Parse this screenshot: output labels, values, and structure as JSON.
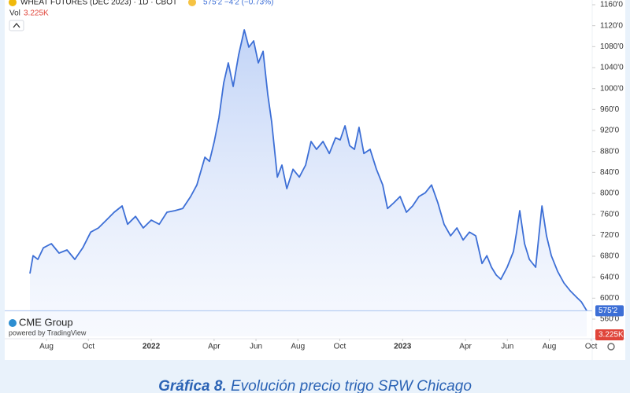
{
  "chart_data": {
    "type": "line",
    "title": "WHEAT FUTURES (DEC 2023) · 1D · CBOT",
    "price_info": "575'2 −4'2 (−0.73%)",
    "volume_label": "Vol",
    "volume_value": "3.225K",
    "last_price_label": "575'2",
    "last_volume_label": "3.225K",
    "brand": "CME Group",
    "powered_by": "powered by TradingView",
    "caption_bold": "Gráfica 8.",
    "caption": " Evolución precio trigo SRW Chicago",
    "x": [
      6.21,
      6.36,
      6.59,
      6.85,
      7.23,
      7.6,
      7.98,
      8.35,
      8.73,
      9.11,
      9.48,
      9.86,
      10.23,
      10.61,
      10.87,
      11.25,
      11.62,
      12,
      12.38,
      12.75,
      13.13,
      13.5,
      13.88,
      14.18,
      14.56,
      14.78,
      15.01,
      15.23,
      15.46,
      15.68,
      15.91,
      16.17,
      16.44,
      16.66,
      16.89,
      17.11,
      17.34,
      17.56,
      17.75,
      18.02,
      18.24,
      18.47,
      18.77,
      19.07,
      19.37,
      19.63,
      19.89,
      20.2,
      20.5,
      20.8,
      21.02,
      21.25,
      21.47,
      21.7,
      21.92,
      22.15,
      22.45,
      22.75,
      23.05,
      23.28,
      23.58,
      23.88,
      24.18,
      24.48,
      24.78,
      25.08,
      25.38,
      25.68,
      25.98,
      26.29,
      26.59,
      26.89,
      27.19,
      27.49,
      27.79,
      28.02,
      28.24,
      28.47,
      28.69,
      28.99,
      29.29,
      29.44,
      29.59,
      29.82,
      30.05,
      30.35,
      30.65,
      30.87,
      31.1,
      31.4,
      31.7,
      32,
      32.3,
      32.53,
      32.79
    ],
    "series": [
      {
        "name": "WHEAT FUTURES (DEC 2023)",
        "color": "#3d6fd6",
        "values": [
          647,
          681,
          674,
          696,
          704,
          686,
          692,
          674,
          696,
          726,
          734,
          749,
          764,
          776,
          741,
          756,
          734,
          749,
          741,
          764,
          767,
          771,
          794,
          816,
          869,
          861,
          899,
          944,
          1011,
          1049,
          1004,
          1064,
          1112,
          1079,
          1091,
          1049,
          1071,
          989,
          936,
          831,
          854,
          809,
          846,
          831,
          854,
          899,
          884,
          899,
          876,
          906,
          902,
          929,
          891,
          884,
          926,
          876,
          884,
          846,
          816,
          771,
          782,
          794,
          764,
          776,
          794,
          801,
          816,
          782,
          741,
          719,
          734,
          711,
          726,
          719,
          666,
          681,
          659,
          644,
          636,
          659,
          689,
          726,
          767,
          704,
          674,
          659,
          776,
          719,
          681,
          651,
          629,
          614,
          602,
          593,
          576
        ]
      }
    ],
    "xlim": [
      4.78,
      33.05
    ],
    "xticks": [
      {
        "value": 7,
        "label": "Aug"
      },
      {
        "value": 9,
        "label": "Oct"
      },
      {
        "value": 12,
        "label": "2022"
      },
      {
        "value": 15,
        "label": "Apr"
      },
      {
        "value": 17,
        "label": "Jun"
      },
      {
        "value": 19,
        "label": "Aug"
      },
      {
        "value": 21,
        "label": "Oct"
      },
      {
        "value": 24,
        "label": "2023"
      },
      {
        "value": 27,
        "label": "Apr"
      },
      {
        "value": 29,
        "label": "Jun"
      },
      {
        "value": 31,
        "label": "Aug"
      },
      {
        "value": 33,
        "label": "Oct"
      }
    ],
    "ylim": [
      527,
      1169
    ],
    "yticks": [
      {
        "value": 560,
        "label": "560'0"
      },
      {
        "value": 600,
        "label": "600'0"
      },
      {
        "value": 640,
        "label": "640'0"
      },
      {
        "value": 680,
        "label": "680'0"
      },
      {
        "value": 720,
        "label": "720'0"
      },
      {
        "value": 760,
        "label": "760'0"
      },
      {
        "value": 800,
        "label": "800'0"
      },
      {
        "value": 840,
        "label": "840'0"
      },
      {
        "value": 880,
        "label": "880'0"
      },
      {
        "value": 920,
        "label": "920'0"
      },
      {
        "value": 960,
        "label": "960'0"
      },
      {
        "value": 1000,
        "label": "1000'0"
      },
      {
        "value": 1040,
        "label": "1040'0"
      },
      {
        "value": 1080,
        "label": "1080'0"
      },
      {
        "value": 1120,
        "label": "1120'0"
      },
      {
        "value": 1160,
        "label": "1160'0"
      }
    ],
    "grid": false
  }
}
